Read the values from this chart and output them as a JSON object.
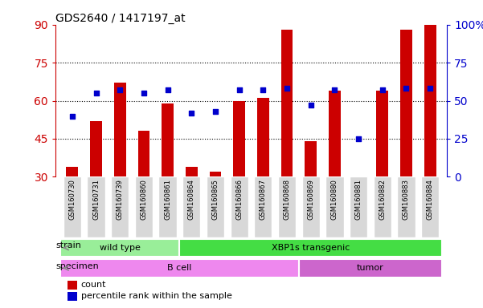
{
  "title": "GDS2640 / 1417197_at",
  "samples": [
    "GSM160730",
    "GSM160731",
    "GSM160739",
    "GSM160860",
    "GSM160861",
    "GSM160864",
    "GSM160865",
    "GSM160866",
    "GSM160867",
    "GSM160868",
    "GSM160869",
    "GSM160880",
    "GSM160881",
    "GSM160882",
    "GSM160883",
    "GSM160884"
  ],
  "counts": [
    34,
    52,
    67,
    48,
    59,
    34,
    32,
    60,
    61,
    88,
    44,
    64,
    30,
    64,
    88,
    90
  ],
  "percentiles": [
    40,
    55,
    57,
    55,
    57,
    42,
    43,
    57,
    57,
    58,
    47,
    57,
    25,
    57,
    58,
    58
  ],
  "ylim_left": [
    30,
    90
  ],
  "ylim_right": [
    0,
    100
  ],
  "yticks_left": [
    30,
    45,
    60,
    75,
    90
  ],
  "yticks_right": [
    0,
    25,
    50,
    75,
    100
  ],
  "bar_color": "#cc0000",
  "dot_color": "#0000cc",
  "axis_color_left": "#cc0000",
  "axis_color_right": "#0000cc",
  "strain_groups": [
    {
      "label": "wild type",
      "start": 0,
      "end": 5,
      "color": "#99ee99"
    },
    {
      "label": "XBP1s transgenic",
      "start": 5,
      "end": 16,
      "color": "#44dd44"
    }
  ],
  "specimen_groups": [
    {
      "label": "B cell",
      "start": 0,
      "end": 10,
      "color": "#ee88ee"
    },
    {
      "label": "tumor",
      "start": 10,
      "end": 16,
      "color": "#cc66cc"
    }
  ],
  "strain_label": "strain",
  "specimen_label": "specimen",
  "legend_count": "count",
  "legend_pct": "percentile rank within the sample",
  "tick_label_bg": "#d8d8d8",
  "arrow_color": "#888888"
}
